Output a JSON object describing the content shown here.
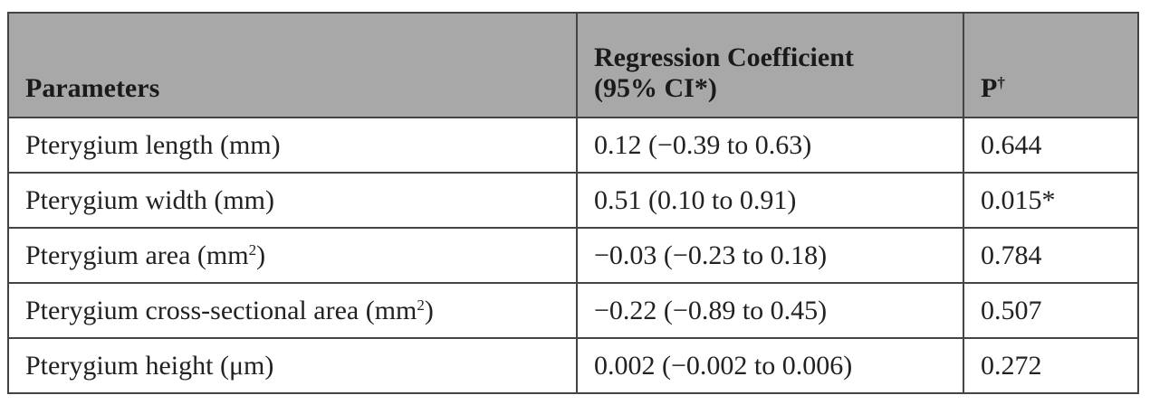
{
  "table": {
    "headers": [
      {
        "line1": "Parameters",
        "line2": ""
      },
      {
        "line1": "Regression Coefficient",
        "line2": "(95% CI*)"
      },
      {
        "line1": "P",
        "sup": "†"
      }
    ],
    "rows": [
      {
        "param": "Pterygium length (mm)",
        "param_sup": "",
        "param_end": "",
        "coef": "0.12 (−0.39 to 0.63)",
        "p": "0.644"
      },
      {
        "param": "Pterygium width (mm)",
        "param_sup": "",
        "param_end": "",
        "coef": "0.51 (0.10 to 0.91)",
        "p": "0.015*"
      },
      {
        "param": "Pterygium area (mm",
        "param_sup": "2",
        "param_end": ")",
        "coef": "−0.03 (−0.23 to 0.18)",
        "p": "0.784"
      },
      {
        "param": "Pterygium cross-sectional area (mm",
        "param_sup": "2",
        "param_end": ")",
        "coef": "−0.22 (−0.89 to 0.45)",
        "p": "0.507"
      },
      {
        "param": "Pterygium height (μm)",
        "param_sup": "",
        "param_end": "",
        "coef": "0.002 (−0.002 to 0.006)",
        "p": "0.272"
      }
    ]
  }
}
